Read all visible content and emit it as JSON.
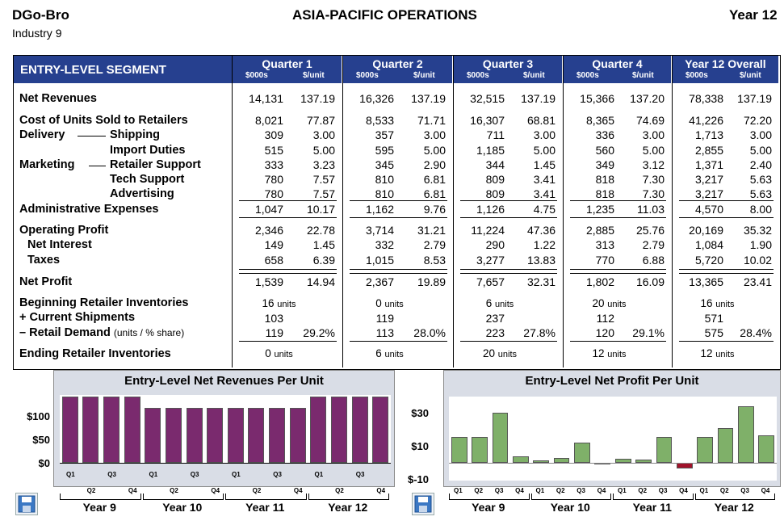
{
  "header": {
    "company": "DGo-Bro",
    "industry": "Industry 9",
    "title": "ASIA-PACIFIC  OPERATIONS",
    "year": "Year 12"
  },
  "segment": "ENTRY-LEVEL SEGMENT",
  "columns": [
    {
      "title": "Quarter 1",
      "u1": "$000s",
      "u2": "$/unit"
    },
    {
      "title": "Quarter 2",
      "u1": "$000s",
      "u2": "$/unit"
    },
    {
      "title": "Quarter 3",
      "u1": "$000s",
      "u2": "$/unit"
    },
    {
      "title": "Quarter 4",
      "u1": "$000s",
      "u2": "$/unit"
    },
    {
      "title": "Year 12 Overall",
      "u1": "$000s",
      "u2": "$/unit"
    }
  ],
  "labels": {
    "net_revenues": "Net Revenues",
    "cost": "Cost of Units Sold to Retailers",
    "delivery": "Delivery",
    "shipping": "Shipping",
    "import": "Import Duties",
    "marketing": "Marketing",
    "retailer_support": "Retailer Support",
    "tech_support": "Tech Support",
    "advertising": "Advertising",
    "admin": "Administrative Expenses",
    "op_profit": "Operating Profit",
    "net_interest": "Net Interest",
    "taxes": "Taxes",
    "net_profit": "Net Profit",
    "beg_inv": "Beginning Retailer Inventories",
    "cur_ship": "+ Current Shipments",
    "ret_demand": "– Retail Demand",
    "ret_demand_note": "(units / % share)",
    "end_inv": "Ending Retailer Inventories",
    "units": "units"
  },
  "rows": {
    "net_revenues": [
      [
        "14,131",
        "137.19"
      ],
      [
        "16,326",
        "137.19"
      ],
      [
        "32,515",
        "137.19"
      ],
      [
        "15,366",
        "137.20"
      ],
      [
        "78,338",
        "137.19"
      ]
    ],
    "cost": [
      [
        "8,021",
        "77.87"
      ],
      [
        "8,533",
        "71.71"
      ],
      [
        "16,307",
        "68.81"
      ],
      [
        "8,365",
        "74.69"
      ],
      [
        "41,226",
        "72.20"
      ]
    ],
    "shipping": [
      [
        "309",
        "3.00"
      ],
      [
        "357",
        "3.00"
      ],
      [
        "711",
        "3.00"
      ],
      [
        "336",
        "3.00"
      ],
      [
        "1,713",
        "3.00"
      ]
    ],
    "import": [
      [
        "515",
        "5.00"
      ],
      [
        "595",
        "5.00"
      ],
      [
        "1,185",
        "5.00"
      ],
      [
        "560",
        "5.00"
      ],
      [
        "2,855",
        "5.00"
      ]
    ],
    "retailer_support": [
      [
        "333",
        "3.23"
      ],
      [
        "345",
        "2.90"
      ],
      [
        "344",
        "1.45"
      ],
      [
        "349",
        "3.12"
      ],
      [
        "1,371",
        "2.40"
      ]
    ],
    "tech_support": [
      [
        "780",
        "7.57"
      ],
      [
        "810",
        "6.81"
      ],
      [
        "809",
        "3.41"
      ],
      [
        "818",
        "7.30"
      ],
      [
        "3,217",
        "5.63"
      ]
    ],
    "advertising": [
      [
        "780",
        "7.57"
      ],
      [
        "810",
        "6.81"
      ],
      [
        "809",
        "3.41"
      ],
      [
        "818",
        "7.30"
      ],
      [
        "3,217",
        "5.63"
      ]
    ],
    "admin": [
      [
        "1,047",
        "10.17"
      ],
      [
        "1,162",
        "9.76"
      ],
      [
        "1,126",
        "4.75"
      ],
      [
        "1,235",
        "11.03"
      ],
      [
        "4,570",
        "8.00"
      ]
    ],
    "op_profit": [
      [
        "2,346",
        "22.78"
      ],
      [
        "3,714",
        "31.21"
      ],
      [
        "11,224",
        "47.36"
      ],
      [
        "2,885",
        "25.76"
      ],
      [
        "20,169",
        "35.32"
      ]
    ],
    "net_interest": [
      [
        "149",
        "1.45"
      ],
      [
        "332",
        "2.79"
      ],
      [
        "290",
        "1.22"
      ],
      [
        "313",
        "2.79"
      ],
      [
        "1,084",
        "1.90"
      ]
    ],
    "taxes": [
      [
        "658",
        "6.39"
      ],
      [
        "1,015",
        "8.53"
      ],
      [
        "3,277",
        "13.83"
      ],
      [
        "770",
        "6.88"
      ],
      [
        "5,720",
        "10.02"
      ]
    ],
    "net_profit": [
      [
        "1,539",
        "14.94"
      ],
      [
        "2,367",
        "19.89"
      ],
      [
        "7,657",
        "32.31"
      ],
      [
        "1,802",
        "16.09"
      ],
      [
        "13,365",
        "23.41"
      ]
    ],
    "beg_inv": [
      "16",
      "0",
      "6",
      "20",
      "16"
    ],
    "cur_ship": [
      "103",
      "119",
      "237",
      "112",
      "571"
    ],
    "ret_demand": [
      [
        "119",
        "29.2%"
      ],
      [
        "113",
        "28.0%"
      ],
      [
        "223",
        "27.8%"
      ],
      [
        "120",
        "29.1%"
      ],
      [
        "575",
        "28.4%"
      ]
    ],
    "end_inv": [
      "0",
      "6",
      "20",
      "12",
      "12"
    ]
  },
  "chart_data": [
    {
      "type": "bar",
      "title": "Entry-Level Net Revenues Per Unit",
      "yticks": [
        "$100",
        "$50",
        "$0"
      ],
      "ylim": [
        0,
        140
      ],
      "years": [
        "Year 9",
        "Year 10",
        "Year 11",
        "Year 12"
      ],
      "qlabels_top": [
        "Q1",
        "Q3",
        "Q1",
        "Q3",
        "Q1",
        "Q3",
        "Q1",
        "Q3"
      ],
      "qlabels_bottom": [
        "Q2",
        "Q4",
        "Q2",
        "Q4",
        "Q2",
        "Q4",
        "Q2",
        "Q4"
      ],
      "values": [
        137,
        137,
        137,
        137,
        114,
        114,
        114,
        114,
        114,
        114,
        114,
        114,
        137.19,
        137.19,
        137.19,
        137.2
      ],
      "color": "#7a2a6e"
    },
    {
      "type": "bar",
      "title": "Entry-Level Net Profit Per Unit",
      "yticks": [
        "$30",
        "$10",
        "$-10"
      ],
      "ylim": [
        -10,
        38
      ],
      "years": [
        "Year 9",
        "Year 10",
        "Year 11",
        "Year 12"
      ],
      "qlabels": [
        "Q1",
        "Q2",
        "Q3",
        "Q4",
        "Q1",
        "Q2",
        "Q3",
        "Q4",
        "Q1",
        "Q2",
        "Q3",
        "Q4",
        "Q1",
        "Q2",
        "Q3",
        "Q4"
      ],
      "values": [
        15,
        15,
        29,
        4,
        1.5,
        3,
        11.5,
        0,
        2.5,
        2,
        15,
        -3,
        14.94,
        19.89,
        32.31,
        16.09
      ],
      "color": "#7fb069",
      "neg_color": "#a0122a"
    }
  ]
}
